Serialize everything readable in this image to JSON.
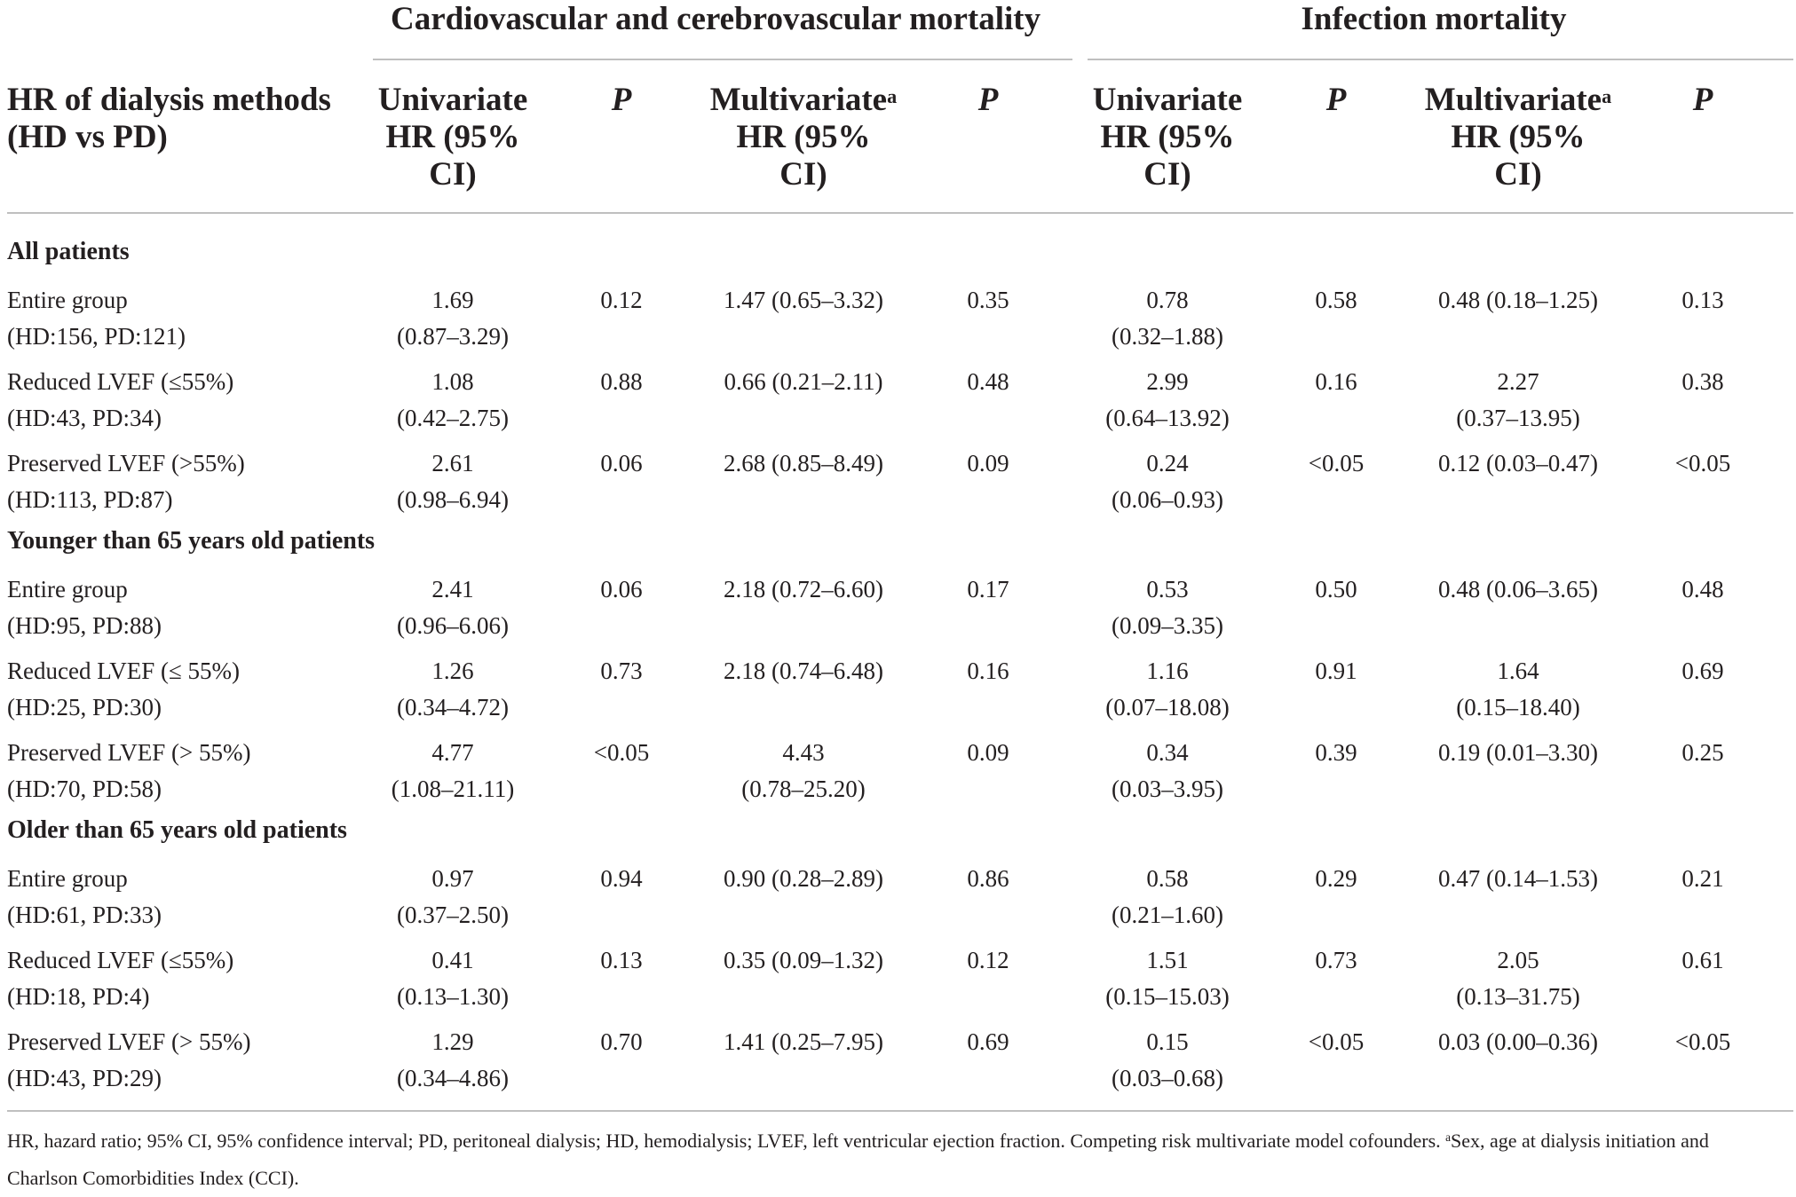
{
  "group_headers": {
    "cardio": "Cardiovascular and cerebrovascular mortality",
    "infection": "Infection mortality"
  },
  "columns": {
    "stub": [
      "HR of dialysis methods",
      "(HD vs PD)"
    ],
    "univariate": [
      "Univariate",
      "HR (95%",
      "CI)"
    ],
    "multivariate": [
      "Multivariate",
      "HR (95%",
      "CI)"
    ],
    "sup_a": "a",
    "p": "P"
  },
  "sections": [
    {
      "title": "All patients",
      "rows": [
        {
          "label": [
            "Entire group",
            "(HD:156, PD:121)"
          ],
          "cv_uni": [
            "1.69",
            "(0.87–3.29)"
          ],
          "cv_p1": "0.12",
          "cv_multi": [
            "1.47 (0.65–3.32)"
          ],
          "cv_p2": "0.35",
          "in_uni": [
            "0.78",
            "(0.32–1.88)"
          ],
          "in_p1": "0.58",
          "in_multi": [
            "0.48 (0.18–1.25)"
          ],
          "in_p2": "0.13"
        },
        {
          "label": [
            "Reduced LVEF (≤55%)",
            "(HD:43, PD:34)"
          ],
          "cv_uni": [
            "1.08",
            "(0.42–2.75)"
          ],
          "cv_p1": "0.88",
          "cv_multi": [
            "0.66 (0.21–2.11)"
          ],
          "cv_p2": "0.48",
          "in_uni": [
            "2.99",
            "(0.64–13.92)"
          ],
          "in_p1": "0.16",
          "in_multi": [
            "2.27",
            "(0.37–13.95)"
          ],
          "in_p2": "0.38"
        },
        {
          "label": [
            "Preserved LVEF (>55%)",
            "(HD:113, PD:87)"
          ],
          "cv_uni": [
            "2.61",
            "(0.98–6.94)"
          ],
          "cv_p1": "0.06",
          "cv_multi": [
            "2.68 (0.85–8.49)"
          ],
          "cv_p2": "0.09",
          "in_uni": [
            "0.24",
            "(0.06–0.93)"
          ],
          "in_p1": "<0.05",
          "in_multi": [
            "0.12 (0.03–0.47)"
          ],
          "in_p2": "<0.05"
        }
      ]
    },
    {
      "title": "Younger than 65 years old patients",
      "rows": [
        {
          "label": [
            "Entire group",
            "(HD:95, PD:88)"
          ],
          "cv_uni": [
            "2.41",
            "(0.96–6.06)"
          ],
          "cv_p1": "0.06",
          "cv_multi": [
            "2.18 (0.72–6.60)"
          ],
          "cv_p2": "0.17",
          "in_uni": [
            "0.53",
            "(0.09–3.35)"
          ],
          "in_p1": "0.50",
          "in_multi": [
            "0.48 (0.06–3.65)"
          ],
          "in_p2": "0.48"
        },
        {
          "label": [
            "Reduced LVEF (≤ 55%)",
            "(HD:25, PD:30)"
          ],
          "cv_uni": [
            "1.26",
            "(0.34–4.72)"
          ],
          "cv_p1": "0.73",
          "cv_multi": [
            "2.18 (0.74–6.48)"
          ],
          "cv_p2": "0.16",
          "in_uni": [
            "1.16",
            "(0.07–18.08)"
          ],
          "in_p1": "0.91",
          "in_multi": [
            "1.64",
            "(0.15–18.40)"
          ],
          "in_p2": "0.69"
        },
        {
          "label": [
            "Preserved LVEF (> 55%)",
            "(HD:70, PD:58)"
          ],
          "cv_uni": [
            "4.77",
            "(1.08–21.11)"
          ],
          "cv_p1": "<0.05",
          "cv_multi": [
            "4.43",
            "(0.78–25.20)"
          ],
          "cv_p2": "0.09",
          "in_uni": [
            "0.34",
            "(0.03–3.95)"
          ],
          "in_p1": "0.39",
          "in_multi": [
            "0.19 (0.01–3.30)"
          ],
          "in_p2": "0.25"
        }
      ]
    },
    {
      "title": "Older than 65 years old patients",
      "rows": [
        {
          "label": [
            "Entire group",
            "(HD:61, PD:33)"
          ],
          "cv_uni": [
            "0.97",
            "(0.37–2.50)"
          ],
          "cv_p1": "0.94",
          "cv_multi": [
            "0.90 (0.28–2.89)"
          ],
          "cv_p2": "0.86",
          "in_uni": [
            "0.58",
            "(0.21–1.60)"
          ],
          "in_p1": "0.29",
          "in_multi": [
            "0.47 (0.14–1.53)"
          ],
          "in_p2": "0.21"
        },
        {
          "label": [
            "Reduced LVEF (≤55%)",
            "(HD:18, PD:4)"
          ],
          "cv_uni": [
            "0.41",
            "(0.13–1.30)"
          ],
          "cv_p1": "0.13",
          "cv_multi": [
            "0.35 (0.09–1.32)"
          ],
          "cv_p2": "0.12",
          "in_uni": [
            "1.51",
            "(0.15–15.03)"
          ],
          "in_p1": "0.73",
          "in_multi": [
            "2.05",
            "(0.13–31.75)"
          ],
          "in_p2": "0.61"
        },
        {
          "label": [
            "Preserved LVEF (> 55%)",
            "(HD:43, PD:29)"
          ],
          "cv_uni": [
            "1.29",
            "(0.34–4.86)"
          ],
          "cv_p1": "0.70",
          "cv_multi": [
            "1.41 (0.25–7.95)"
          ],
          "cv_p2": "0.69",
          "in_uni": [
            "0.15",
            "(0.03–0.68)"
          ],
          "in_p1": "<0.05",
          "in_multi": [
            "0.03 (0.00–0.36)"
          ],
          "in_p2": "<0.05"
        }
      ]
    }
  ],
  "footnote": {
    "text": "HR, hazard ratio; 95% CI, 95% confidence interval; PD, peritoneal dialysis; HD, hemodialysis; LVEF, left ventricular ejection fraction. Competing risk multivariate model cofounders. ",
    "sup": "a",
    "text2": "Sex, age at dialysis initiation and Charlson Comorbidities Index (CCI)."
  }
}
